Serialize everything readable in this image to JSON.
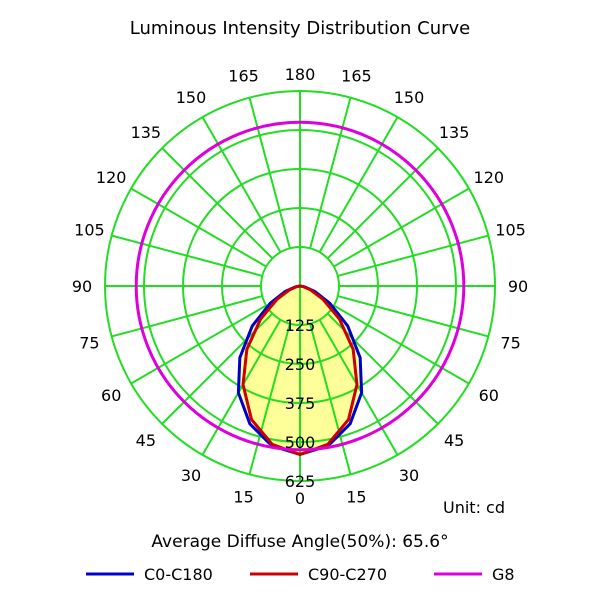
{
  "chart_data": {
    "type": "polar",
    "title": "Luminous Intensity Distribution Curve",
    "unit_label": "Unit: cd",
    "average_label": "Average Diffuse Angle(50%): 65.6°",
    "radial_ticks": [
      "125",
      "250",
      "375",
      "500",
      "625"
    ],
    "radial_values": [
      125,
      250,
      375,
      500,
      625
    ],
    "r_max": 625,
    "angle_labels": {
      "left": [
        "0",
        "15",
        "30",
        "45",
        "60",
        "75",
        "90",
        "105",
        "120",
        "135",
        "150",
        "165",
        "180"
      ],
      "right": [
        "15",
        "30",
        "45",
        "60",
        "75",
        "90",
        "105",
        "120",
        "135",
        "150",
        "165"
      ]
    },
    "grid": true,
    "legend_position": "bottom",
    "colors": {
      "grid": "#22dd22",
      "fill": "#ffff99"
    },
    "series": [
      {
        "name": "C0-C180",
        "color": "#0000cc",
        "angles": [
          0,
          10,
          20,
          30,
          40,
          50,
          60,
          70,
          80,
          90
        ],
        "values": [
          540,
          520,
          470,
          395,
          300,
          200,
          110,
          50,
          15,
          0
        ]
      },
      {
        "name": "C90-C270",
        "color": "#cc0000",
        "angles": [
          0,
          10,
          20,
          30,
          40,
          50,
          60,
          70,
          80,
          90
        ],
        "values": [
          540,
          515,
          455,
          365,
          265,
          165,
          85,
          35,
          10,
          0
        ]
      },
      {
        "name": "G8",
        "color": "#dd00dd",
        "angles": [
          0,
          180
        ],
        "values": [
          525,
          525
        ]
      }
    ]
  }
}
